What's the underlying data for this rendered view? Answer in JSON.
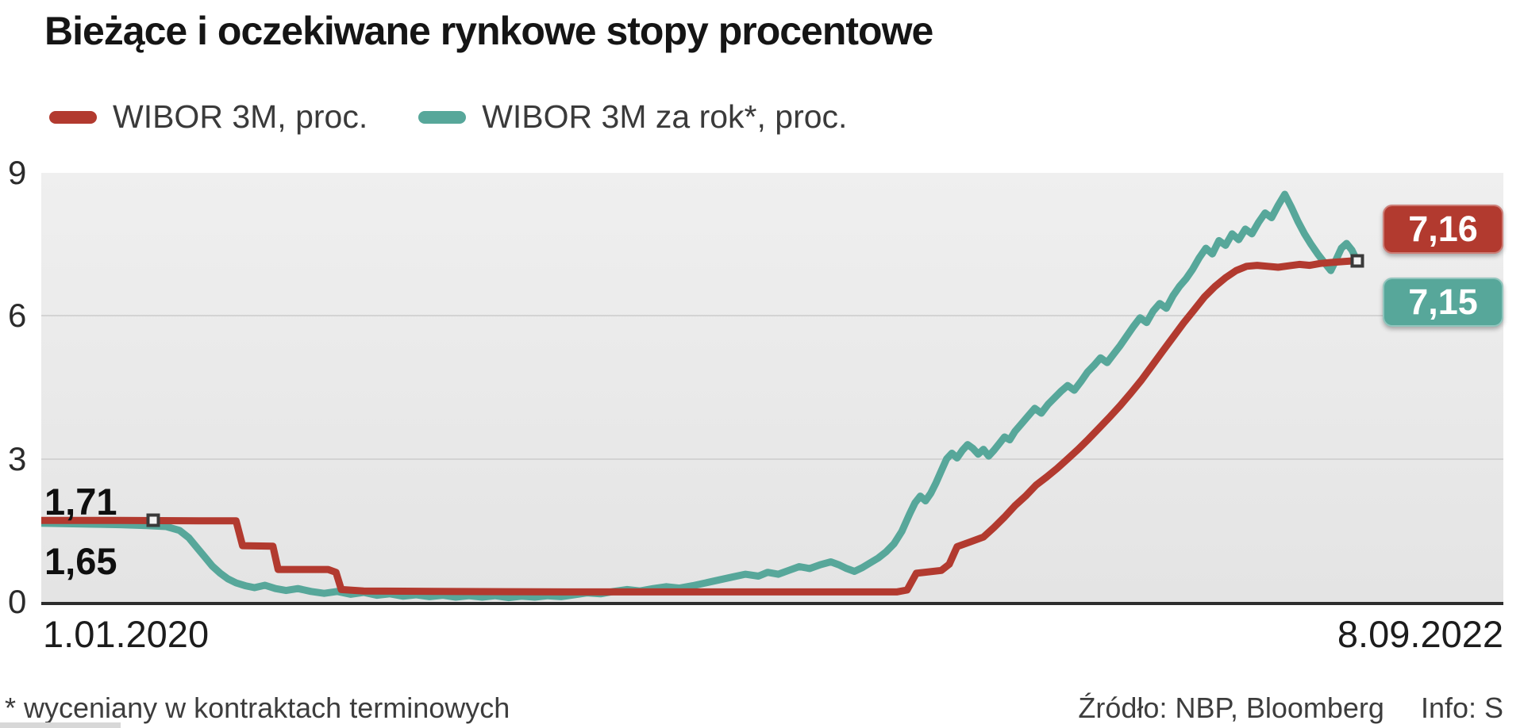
{
  "title": "Bieżące i oczekiwane rynkowe stopy procentowe",
  "legend": {
    "items": [
      {
        "label": "WIBOR 3M, proc.",
        "color": "#b23a2f"
      },
      {
        "label": "WIBOR 3M za rok*, proc.",
        "color": "#57a79a"
      }
    ]
  },
  "axis": {
    "x_start": "1.01.2020",
    "x_end": "8.09.2022"
  },
  "labels": {
    "red_start": "1,71",
    "teal_start": "1,65",
    "red_end": "7,16",
    "teal_end": "7,15"
  },
  "footer": {
    "footnote": "* wyceniany w kontraktach terminowych",
    "source": "Źródło: NBP, Bloomberg",
    "info": "Info: S"
  },
  "chart_data": {
    "type": "line",
    "title": "Bieżące i oczekiwane rynkowe stopy procentowe",
    "xlabel": "",
    "ylabel": "proc.",
    "x_axis": {
      "start_label": "1.01.2020",
      "end_label": "8.09.2022",
      "x_unit": "fraction of time span 1.01.2020 - 8.09.2022"
    },
    "ylim": [
      0,
      9
    ],
    "y_ticks": [
      0,
      3,
      6,
      9
    ],
    "grid": "horizontal",
    "legend_position": "top",
    "data_width_fraction": 0.9,
    "series": [
      {
        "id": "wibor3m",
        "name": "WIBOR 3M, proc.",
        "color": "#b23a2f",
        "stroke_width": 9,
        "first_value": 1.71,
        "last_value": 7.16,
        "points": [
          [
            0,
            1.71
          ],
          [
            0.06,
            1.71
          ],
          [
            0.12,
            1.7
          ],
          [
            0.148,
            1.7
          ],
          [
            0.153,
            1.18
          ],
          [
            0.176,
            1.17
          ],
          [
            0.18,
            0.68
          ],
          [
            0.218,
            0.68
          ],
          [
            0.224,
            0.62
          ],
          [
            0.228,
            0.26
          ],
          [
            0.245,
            0.23
          ],
          [
            0.3,
            0.22
          ],
          [
            0.4,
            0.21
          ],
          [
            0.5,
            0.21
          ],
          [
            0.6,
            0.21
          ],
          [
            0.65,
            0.21
          ],
          [
            0.658,
            0.25
          ],
          [
            0.665,
            0.6
          ],
          [
            0.684,
            0.66
          ],
          [
            0.69,
            0.79
          ],
          [
            0.696,
            1.16
          ],
          [
            0.706,
            1.26
          ],
          [
            0.716,
            1.36
          ],
          [
            0.724,
            1.56
          ],
          [
            0.732,
            1.78
          ],
          [
            0.74,
            2.02
          ],
          [
            0.748,
            2.22
          ],
          [
            0.756,
            2.45
          ],
          [
            0.764,
            2.62
          ],
          [
            0.772,
            2.8
          ],
          [
            0.78,
            3
          ],
          [
            0.788,
            3.2
          ],
          [
            0.796,
            3.42
          ],
          [
            0.804,
            3.65
          ],
          [
            0.812,
            3.88
          ],
          [
            0.82,
            4.12
          ],
          [
            0.828,
            4.38
          ],
          [
            0.836,
            4.65
          ],
          [
            0.844,
            4.95
          ],
          [
            0.852,
            5.25
          ],
          [
            0.86,
            5.55
          ],
          [
            0.868,
            5.85
          ],
          [
            0.876,
            6.12
          ],
          [
            0.884,
            6.4
          ],
          [
            0.892,
            6.62
          ],
          [
            0.9,
            6.8
          ],
          [
            0.908,
            6.95
          ],
          [
            0.916,
            7.04
          ],
          [
            0.924,
            7.06
          ],
          [
            0.932,
            7.04
          ],
          [
            0.94,
            7.02
          ],
          [
            0.948,
            7.05
          ],
          [
            0.956,
            7.08
          ],
          [
            0.964,
            7.06
          ],
          [
            0.972,
            7.1
          ],
          [
            0.98,
            7.12
          ],
          [
            0.99,
            7.14
          ],
          [
            1,
            7.16
          ]
        ]
      },
      {
        "id": "wibor3m-za-rok",
        "name": "WIBOR 3M za rok*, proc.",
        "color": "#57a79a",
        "stroke_width": 9,
        "first_value": 1.65,
        "last_value": 7.15,
        "points": [
          [
            0,
            1.65
          ],
          [
            0.02,
            1.64
          ],
          [
            0.04,
            1.63
          ],
          [
            0.06,
            1.62
          ],
          [
            0.08,
            1.6
          ],
          [
            0.095,
            1.58
          ],
          [
            0.105,
            1.5
          ],
          [
            0.112,
            1.35
          ],
          [
            0.118,
            1.15
          ],
          [
            0.124,
            0.95
          ],
          [
            0.13,
            0.75
          ],
          [
            0.136,
            0.6
          ],
          [
            0.142,
            0.48
          ],
          [
            0.148,
            0.4
          ],
          [
            0.155,
            0.34
          ],
          [
            0.162,
            0.3
          ],
          [
            0.17,
            0.35
          ],
          [
            0.178,
            0.28
          ],
          [
            0.186,
            0.24
          ],
          [
            0.195,
            0.28
          ],
          [
            0.205,
            0.22
          ],
          [
            0.215,
            0.18
          ],
          [
            0.225,
            0.22
          ],
          [
            0.235,
            0.16
          ],
          [
            0.245,
            0.2
          ],
          [
            0.255,
            0.14
          ],
          [
            0.265,
            0.17
          ],
          [
            0.275,
            0.12
          ],
          [
            0.285,
            0.15
          ],
          [
            0.295,
            0.11
          ],
          [
            0.305,
            0.14
          ],
          [
            0.315,
            0.1
          ],
          [
            0.325,
            0.13
          ],
          [
            0.335,
            0.1
          ],
          [
            0.345,
            0.13
          ],
          [
            0.355,
            0.09
          ],
          [
            0.365,
            0.12
          ],
          [
            0.375,
            0.1
          ],
          [
            0.385,
            0.13
          ],
          [
            0.395,
            0.11
          ],
          [
            0.405,
            0.15
          ],
          [
            0.415,
            0.19
          ],
          [
            0.425,
            0.17
          ],
          [
            0.435,
            0.22
          ],
          [
            0.445,
            0.26
          ],
          [
            0.455,
            0.23
          ],
          [
            0.465,
            0.28
          ],
          [
            0.475,
            0.32
          ],
          [
            0.485,
            0.29
          ],
          [
            0.495,
            0.34
          ],
          [
            0.505,
            0.4
          ],
          [
            0.515,
            0.46
          ],
          [
            0.525,
            0.52
          ],
          [
            0.535,
            0.58
          ],
          [
            0.545,
            0.54
          ],
          [
            0.552,
            0.62
          ],
          [
            0.56,
            0.58
          ],
          [
            0.568,
            0.66
          ],
          [
            0.576,
            0.74
          ],
          [
            0.584,
            0.7
          ],
          [
            0.592,
            0.78
          ],
          [
            0.6,
            0.84
          ],
          [
            0.606,
            0.78
          ],
          [
            0.612,
            0.7
          ],
          [
            0.618,
            0.64
          ],
          [
            0.624,
            0.72
          ],
          [
            0.63,
            0.82
          ],
          [
            0.636,
            0.92
          ],
          [
            0.642,
            1.05
          ],
          [
            0.648,
            1.22
          ],
          [
            0.654,
            1.48
          ],
          [
            0.66,
            1.85
          ],
          [
            0.664,
            2.08
          ],
          [
            0.668,
            2.22
          ],
          [
            0.672,
            2.12
          ],
          [
            0.676,
            2.28
          ],
          [
            0.68,
            2.5
          ],
          [
            0.684,
            2.75
          ],
          [
            0.688,
            3
          ],
          [
            0.692,
            3.12
          ],
          [
            0.696,
            3.02
          ],
          [
            0.7,
            3.18
          ],
          [
            0.704,
            3.3
          ],
          [
            0.708,
            3.22
          ],
          [
            0.712,
            3.1
          ],
          [
            0.716,
            3.2
          ],
          [
            0.72,
            3.06
          ],
          [
            0.724,
            3.18
          ],
          [
            0.728,
            3.32
          ],
          [
            0.732,
            3.46
          ],
          [
            0.736,
            3.4
          ],
          [
            0.74,
            3.58
          ],
          [
            0.745,
            3.74
          ],
          [
            0.75,
            3.9
          ],
          [
            0.755,
            4.06
          ],
          [
            0.76,
            3.96
          ],
          [
            0.765,
            4.14
          ],
          [
            0.77,
            4.28
          ],
          [
            0.775,
            4.42
          ],
          [
            0.78,
            4.54
          ],
          [
            0.785,
            4.44
          ],
          [
            0.79,
            4.62
          ],
          [
            0.795,
            4.82
          ],
          [
            0.8,
            4.96
          ],
          [
            0.805,
            5.12
          ],
          [
            0.81,
            5.02
          ],
          [
            0.815,
            5.2
          ],
          [
            0.82,
            5.38
          ],
          [
            0.825,
            5.58
          ],
          [
            0.83,
            5.78
          ],
          [
            0.835,
            5.96
          ],
          [
            0.84,
            5.86
          ],
          [
            0.845,
            6.1
          ],
          [
            0.85,
            6.26
          ],
          [
            0.855,
            6.16
          ],
          [
            0.86,
            6.42
          ],
          [
            0.865,
            6.62
          ],
          [
            0.87,
            6.78
          ],
          [
            0.875,
            6.98
          ],
          [
            0.88,
            7.22
          ],
          [
            0.885,
            7.42
          ],
          [
            0.89,
            7.3
          ],
          [
            0.895,
            7.58
          ],
          [
            0.9,
            7.48
          ],
          [
            0.905,
            7.72
          ],
          [
            0.91,
            7.6
          ],
          [
            0.915,
            7.82
          ],
          [
            0.92,
            7.72
          ],
          [
            0.925,
            7.96
          ],
          [
            0.93,
            8.16
          ],
          [
            0.935,
            8.06
          ],
          [
            0.94,
            8.32
          ],
          [
            0.945,
            8.55
          ],
          [
            0.95,
            8.28
          ],
          [
            0.955,
            7.98
          ],
          [
            0.96,
            7.72
          ],
          [
            0.965,
            7.5
          ],
          [
            0.97,
            7.3
          ],
          [
            0.975,
            7.12
          ],
          [
            0.98,
            6.95
          ],
          [
            0.984,
            7.18
          ],
          [
            0.988,
            7.42
          ],
          [
            0.992,
            7.52
          ],
          [
            0.996,
            7.38
          ],
          [
            1,
            7.15
          ]
        ]
      }
    ],
    "markers": [
      {
        "series": "wibor3m",
        "x_frac": 0.085,
        "value": 1.71,
        "position": "start"
      },
      {
        "series": "wibor3m",
        "x_frac": 1,
        "value": 7.16,
        "position": "end"
      }
    ]
  }
}
